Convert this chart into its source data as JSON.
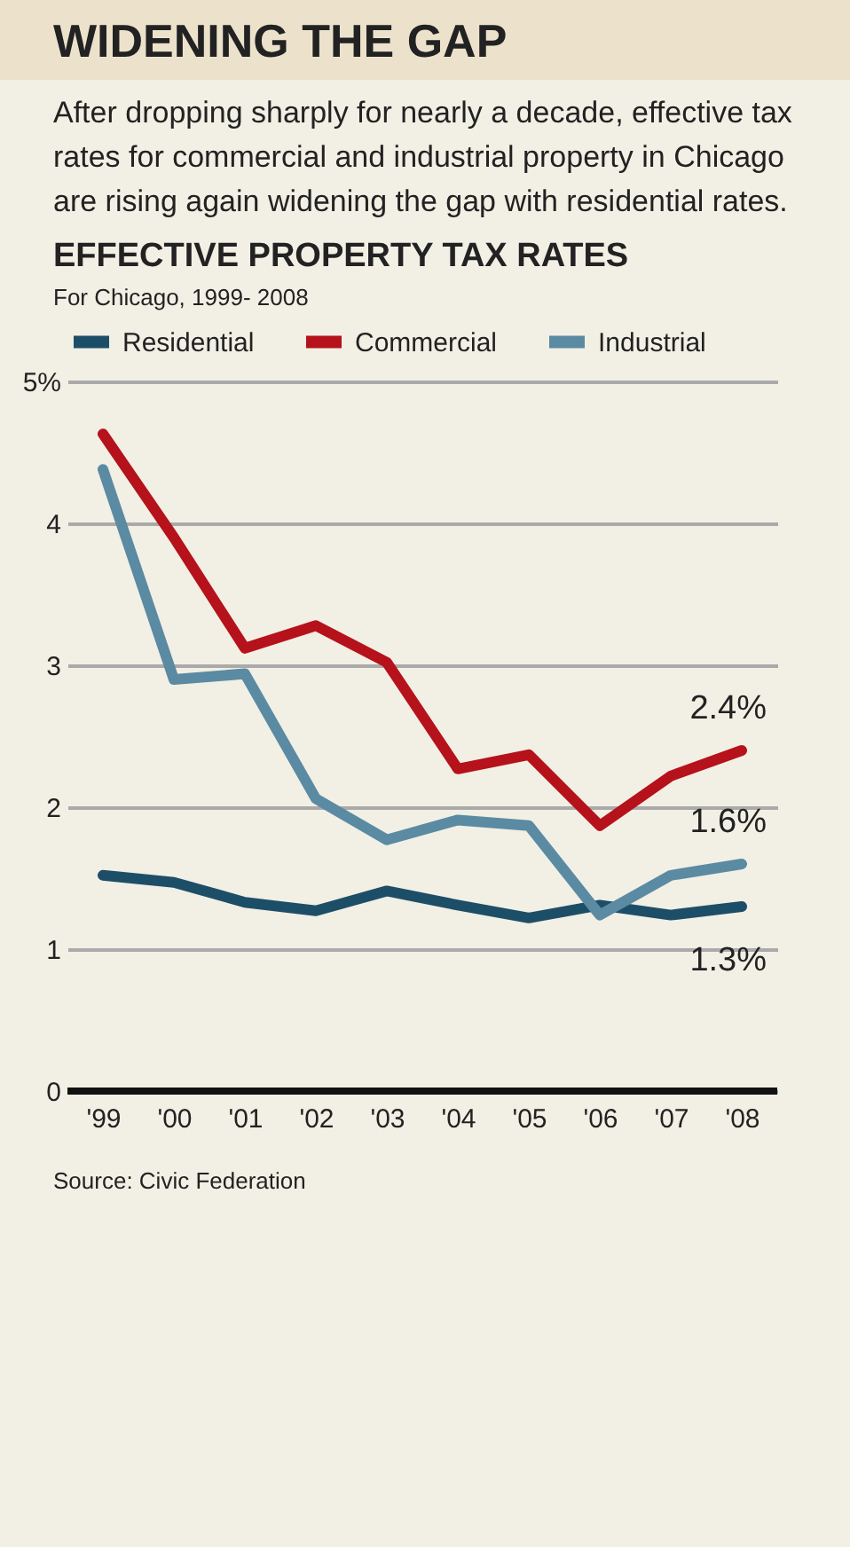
{
  "chart_data": {
    "type": "line",
    "title": "WIDENING THE GAP",
    "subtitle": "After dropping sharply for nearly a decade, effective tax rates for commercial and industrial property in Chicago are rising again widening the gap with residential rates.",
    "categories": [
      "'99",
      "'00",
      "'01",
      "'02",
      "'03",
      "'04",
      "'05",
      "'06",
      "'07",
      "'08"
    ],
    "series": [
      {
        "name": "Residential",
        "color": "#1d4e68",
        "values": [
          1.52,
          1.47,
          1.33,
          1.27,
          1.41,
          1.31,
          1.22,
          1.31,
          1.24,
          1.3
        ]
      },
      {
        "name": "Commercial",
        "color": "#b5121b",
        "values": [
          4.63,
          3.9,
          3.12,
          3.28,
          3.02,
          2.27,
          2.37,
          1.87,
          2.22,
          2.4
        ]
      },
      {
        "name": "Industrial",
        "color": "#5b8aa3",
        "values": [
          4.38,
          2.9,
          2.94,
          2.06,
          1.77,
          1.91,
          1.87,
          1.24,
          1.52,
          1.6
        ]
      }
    ],
    "ylim": [
      0,
      5
    ],
    "yticks": [
      0,
      1,
      2,
      3,
      4,
      {
        "value": 5,
        "label": "5%"
      }
    ],
    "grid": "y",
    "legend": "top",
    "line_style": "solid",
    "marker": "none",
    "annotations": [
      "EFFECTIVE PROPERTY TAX RATES",
      "For Chicago, 1999- 2008",
      {
        "text": "2.4%",
        "x": "'08",
        "y": 2.4
      },
      {
        "text": "1.6%",
        "x": "'08",
        "y": 1.6
      },
      {
        "text": "1.3%",
        "x": "'08",
        "y": 1.3
      },
      "Source: Civic Federation"
    ]
  }
}
